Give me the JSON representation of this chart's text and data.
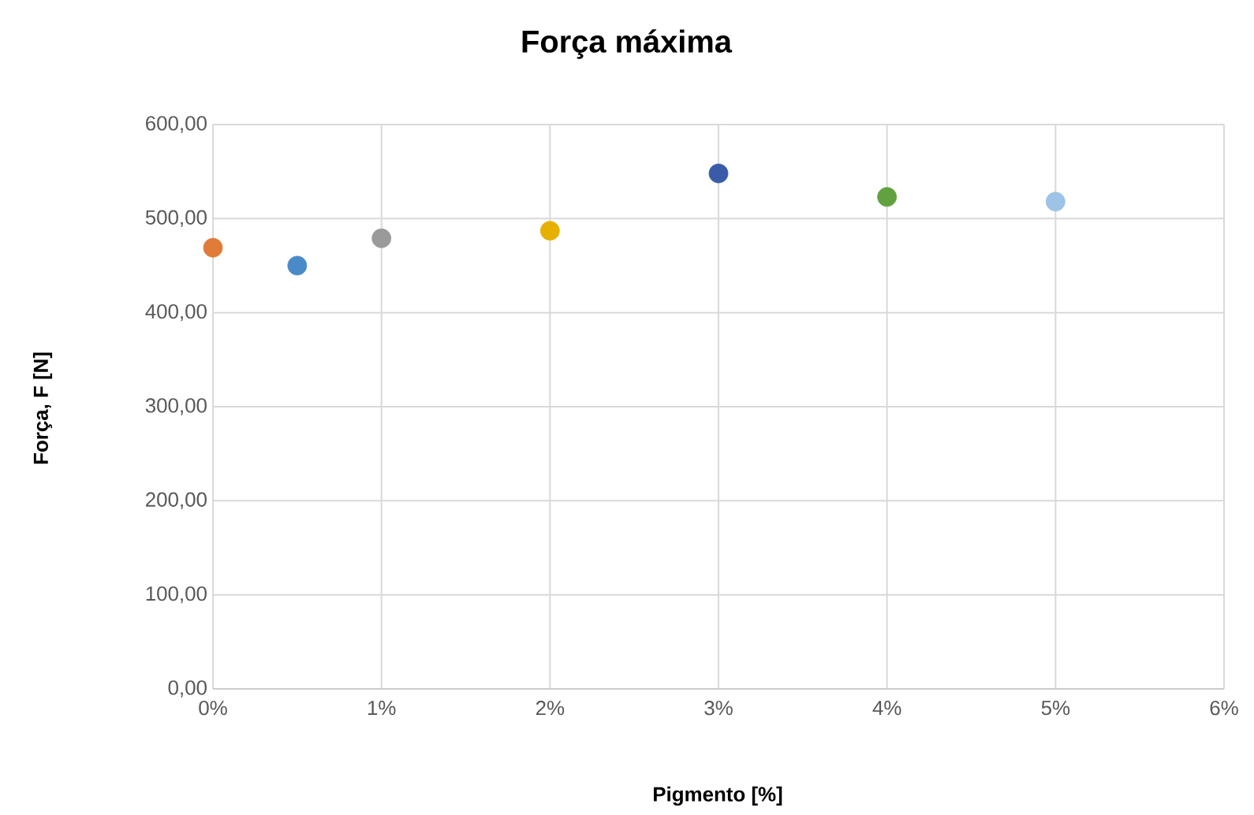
{
  "chart_data": {
    "type": "scatter",
    "title": "Força máxima",
    "xlabel": "Pigmento [%]",
    "ylabel": "Força, F [N]",
    "x": [
      0,
      0.5,
      1,
      2,
      3,
      4,
      5
    ],
    "values": [
      469,
      450,
      479,
      487,
      548,
      523,
      518
    ],
    "colors": [
      "#e07b39",
      "#4a8ac8",
      "#9a9a9a",
      "#e6b000",
      "#3a5ca8",
      "#62a13f",
      "#9dc3e6"
    ],
    "xlim": [
      0,
      6
    ],
    "ylim": [
      0,
      600
    ],
    "xticks": [
      {
        "value": 0,
        "label": "0%"
      },
      {
        "value": 1,
        "label": "1%"
      },
      {
        "value": 2,
        "label": "2%"
      },
      {
        "value": 3,
        "label": "3%"
      },
      {
        "value": 4,
        "label": "4%"
      },
      {
        "value": 5,
        "label": "5%"
      },
      {
        "value": 6,
        "label": "6%"
      }
    ],
    "yticks": [
      {
        "value": 0,
        "label": "0,00"
      },
      {
        "value": 100,
        "label": "100,00"
      },
      {
        "value": 200,
        "label": "200,00"
      },
      {
        "value": 300,
        "label": "300,00"
      },
      {
        "value": 400,
        "label": "400,00"
      },
      {
        "value": 500,
        "label": "500,00"
      },
      {
        "value": 600,
        "label": "600,00"
      }
    ],
    "grid": true,
    "marker": "circle"
  }
}
